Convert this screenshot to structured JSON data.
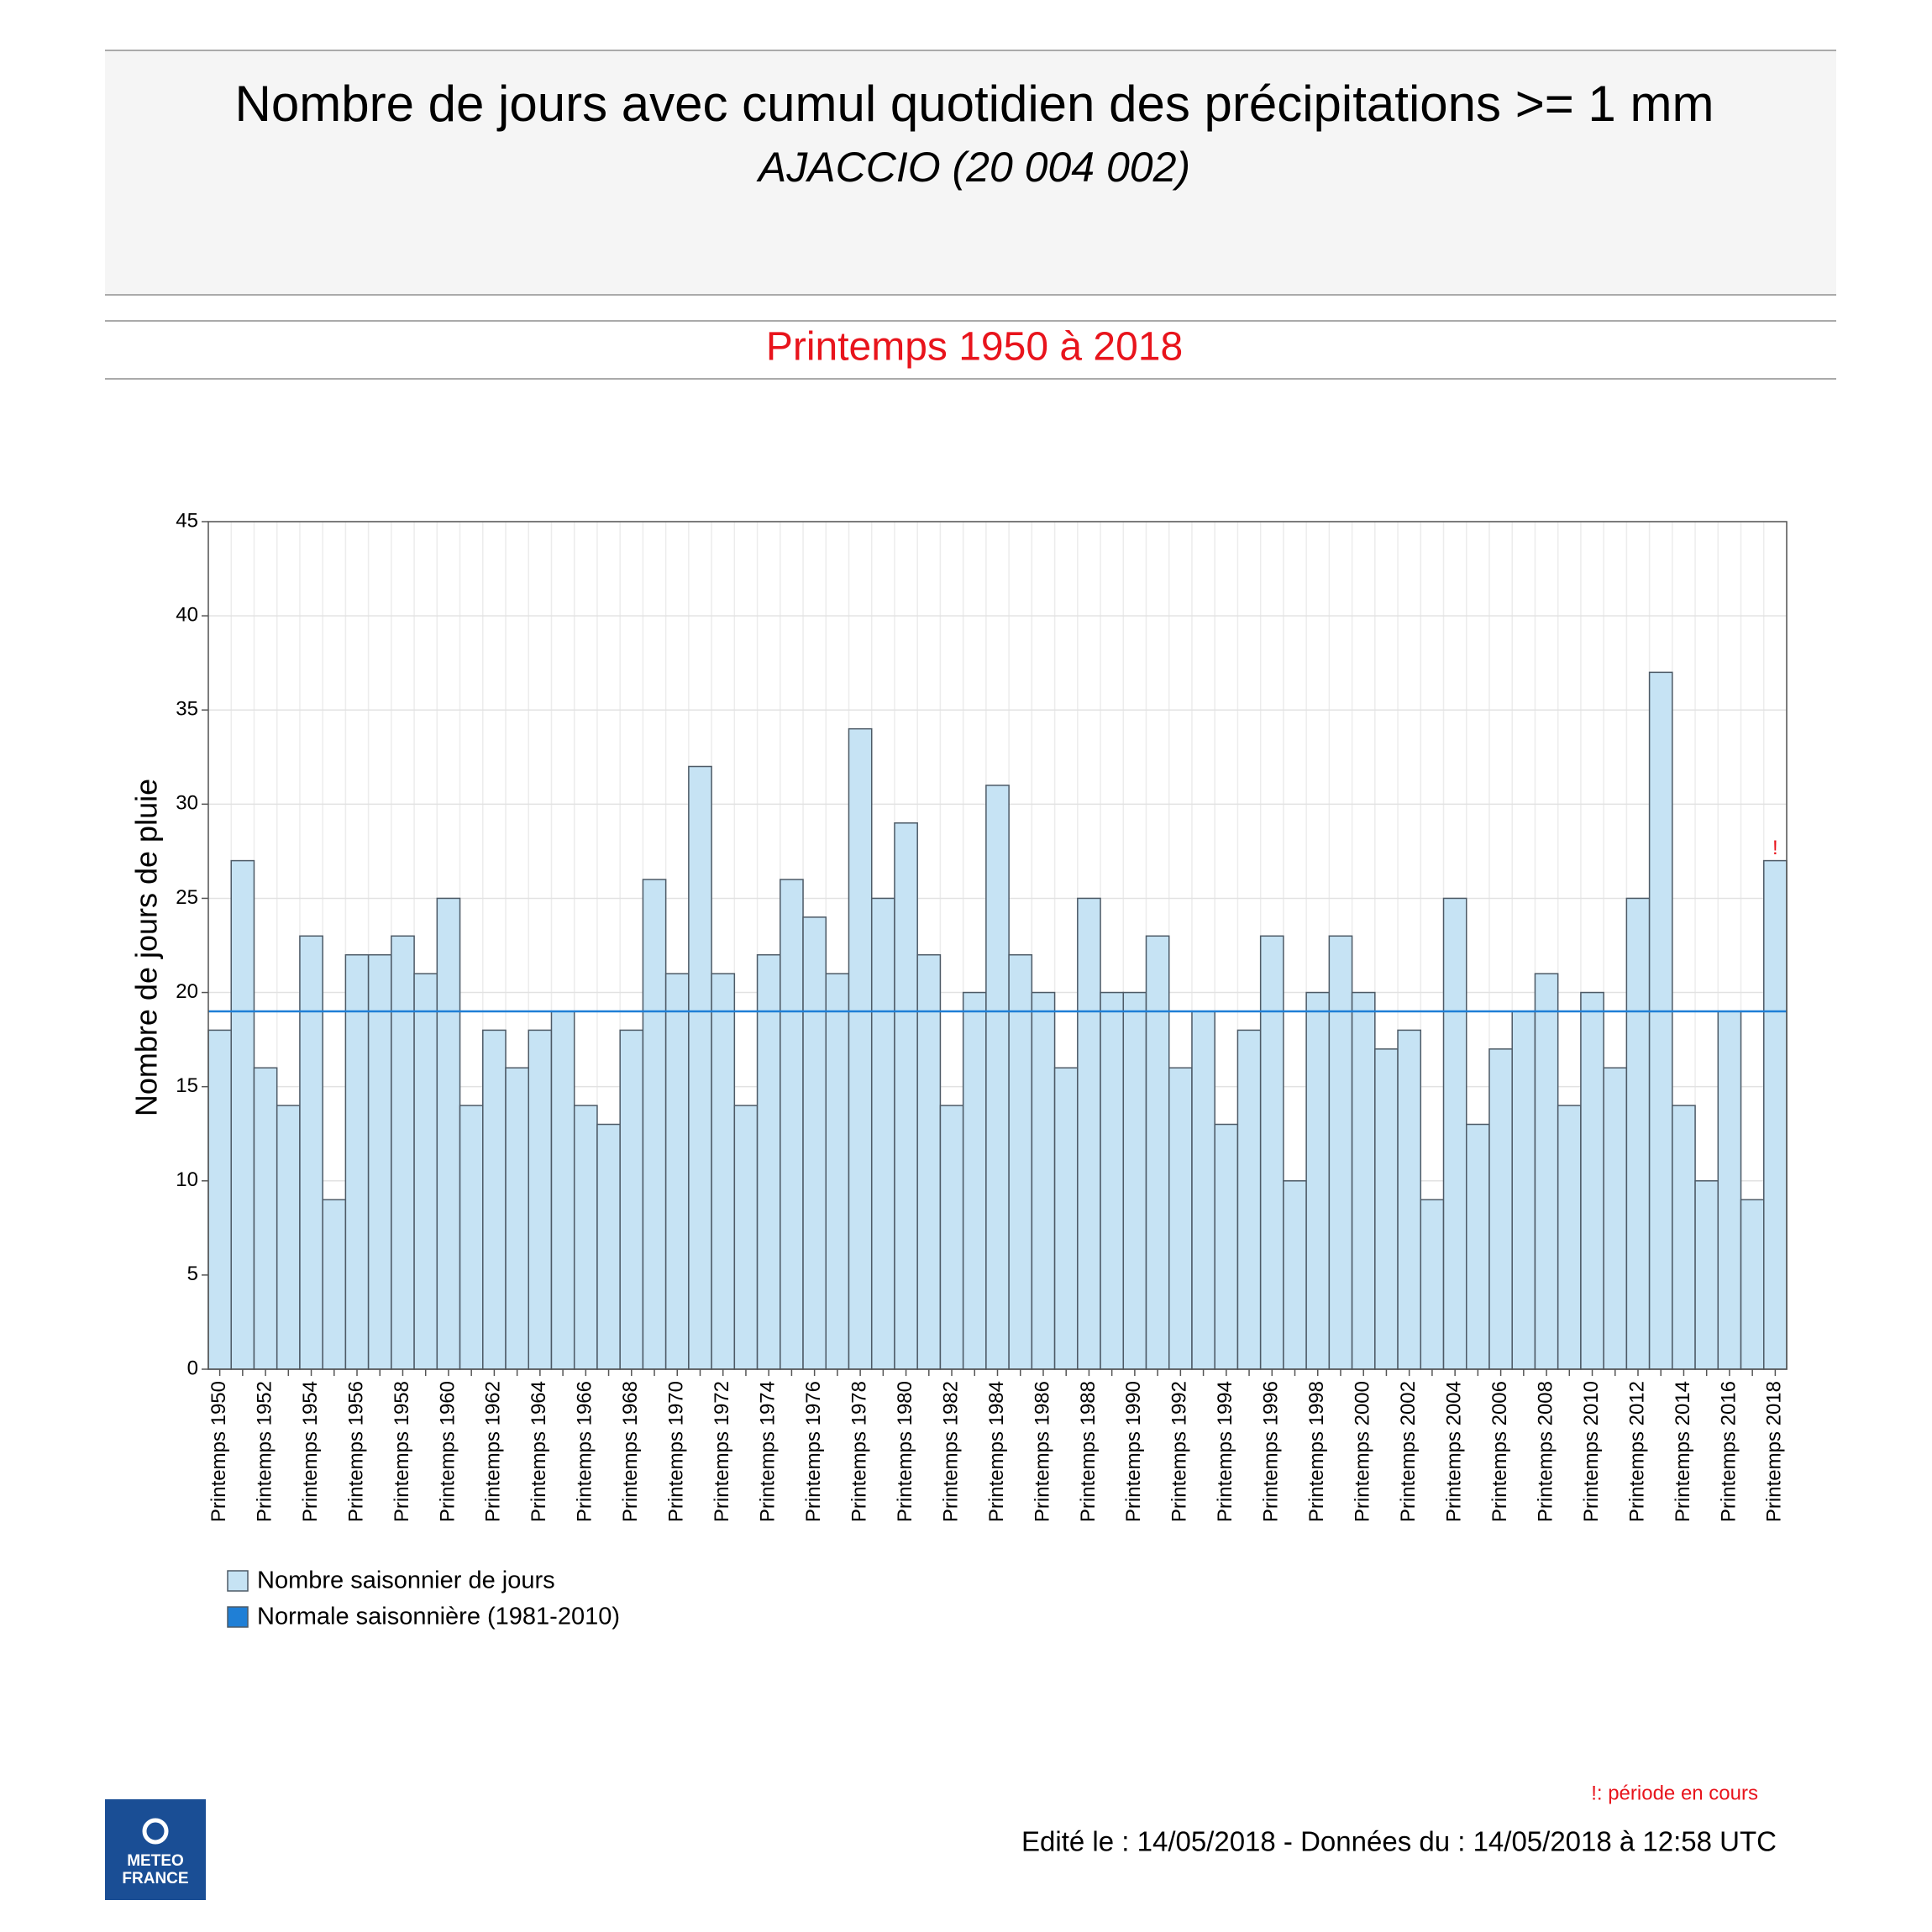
{
  "chart_data": {
    "type": "bar",
    "title": "Nombre de jours avec cumul quotidien des précipitations >= 1 mm",
    "subtitle": "AJACCIO (20 004 002)",
    "period": "Printemps 1950 à 2018",
    "y_label": "Nombre de jours de pluie",
    "categories": [
      "Printemps 1950",
      null,
      "Printemps 1952",
      null,
      "Printemps 1954",
      null,
      "Printemps 1956",
      null,
      "Printemps 1958",
      null,
      "Printemps 1960",
      null,
      "Printemps 1962",
      null,
      "Printemps 1964",
      null,
      "Printemps 1966",
      null,
      "Printemps 1968",
      null,
      "Printemps 1970",
      null,
      "Printemps 1972",
      null,
      "Printemps 1974",
      null,
      "Printemps 1976",
      null,
      "Printemps 1978",
      null,
      "Printemps 1980",
      null,
      "Printemps 1982",
      null,
      "Printemps 1984",
      null,
      "Printemps 1986",
      null,
      "Printemps 1988",
      null,
      "Printemps 1990",
      null,
      "Printemps 1992",
      null,
      "Printemps 1994",
      null,
      "Printemps 1996",
      null,
      "Printemps 1998",
      null,
      "Printemps 2000",
      null,
      "Printemps 2002",
      null,
      "Printemps 2004",
      null,
      "Printemps 2006",
      null,
      "Printemps 2008",
      null,
      "Printemps 2010",
      null,
      "Printemps 2012",
      null,
      "Printemps 2014",
      null,
      "Printemps 2016",
      null,
      "Printemps 2018"
    ],
    "series": [
      {
        "name": "Nombre saisonnier de jours",
        "color": "#c6e3f4",
        "values": [
          18,
          27,
          16,
          14,
          23,
          9,
          22,
          22,
          23,
          21,
          25,
          14,
          18,
          16,
          18,
          19,
          14,
          13,
          18,
          26,
          21,
          32,
          21,
          14,
          22,
          26,
          24,
          21,
          34,
          25,
          29,
          22,
          14,
          20,
          31,
          22,
          20,
          16,
          25,
          20,
          20,
          23,
          16,
          19,
          13,
          18,
          23,
          10,
          20,
          23,
          20,
          17,
          18,
          9,
          25,
          13,
          17,
          19,
          21,
          14,
          20,
          16,
          25,
          37,
          14,
          10,
          19,
          9,
          27
        ]
      }
    ],
    "reference_line": {
      "name": "Normale saisonnière (1981-2010)",
      "color": "#1f7fd6",
      "value": 19
    },
    "annotation": "!",
    "footnote": "!: période en cours",
    "ylim": [
      0,
      45
    ],
    "yticks": [
      0,
      5,
      10,
      15,
      20,
      25,
      30,
      35,
      40,
      45
    ],
    "grid": true,
    "footer": "Edité le : 14/05/2018 - Données du : 14/05/2018 à 12:58 UTC",
    "logo": [
      "METEO",
      "FRANCE"
    ]
  }
}
